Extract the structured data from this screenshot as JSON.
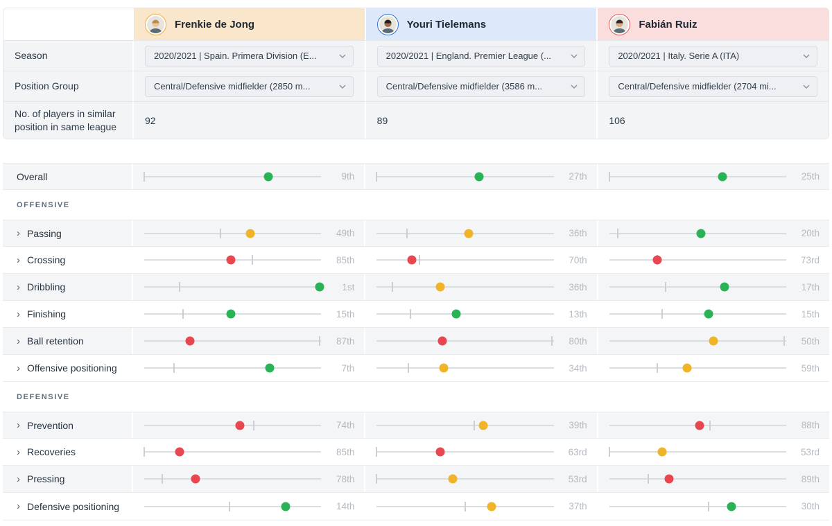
{
  "colors": {
    "green": "#29b356",
    "yellow": "#f0b429",
    "red": "#e84750",
    "track": "#dadde1"
  },
  "info": {
    "season_label": "Season",
    "position_group_label": "Position Group",
    "similar_label": "No. of players in similar position in same league"
  },
  "players": [
    {
      "name": "Frenkie de Jong",
      "header_bg": "#fae7cb",
      "accent": "#ecaf44",
      "season": "2020/2021 | Spain. Primera Division (E...",
      "position_group": "Central/Defensive midfielder (2850 m...",
      "similar_count": "92",
      "avatar": {
        "skin": "#e8c49c",
        "hair": "#b98d4f"
      }
    },
    {
      "name": "Youri Tielemans",
      "header_bg": "#dde9fb",
      "accent": "#2f6fd6",
      "season": "2020/2021 | England. Premier League (...",
      "position_group": "Central/Defensive midfielder (3586 m...",
      "similar_count": "89",
      "avatar": {
        "skin": "#9c6b44",
        "hair": "#241f1b"
      }
    },
    {
      "name": "Fabián Ruiz",
      "header_bg": "#fadedd",
      "accent": "#e35b5b",
      "season": "2020/2021 | Italy. Serie A (ITA)",
      "position_group": "Central/Defensive midfielder (2704 mi...",
      "similar_count": "106",
      "avatar": {
        "skin": "#d9ab84",
        "hair": "#2e2722"
      }
    }
  ],
  "sections": [
    {
      "title": "",
      "rows": [
        {
          "label": "Overall",
          "chevron": false,
          "cells": [
            {
              "rank": "9th",
              "color": "green",
              "dot": 0.7,
              "tick": 0.0
            },
            {
              "rank": "27th",
              "color": "green",
              "dot": 0.58,
              "tick": 0.0
            },
            {
              "rank": "25th",
              "color": "green",
              "dot": 0.64,
              "tick": 0.0
            }
          ]
        }
      ]
    },
    {
      "title": "OFFENSIVE",
      "rows": [
        {
          "label": "Passing",
          "chevron": true,
          "cells": [
            {
              "rank": "49th",
              "color": "yellow",
              "dot": 0.6,
              "tick": 0.43
            },
            {
              "rank": "36th",
              "color": "yellow",
              "dot": 0.52,
              "tick": 0.17
            },
            {
              "rank": "20th",
              "color": "green",
              "dot": 0.52,
              "tick": 0.05
            }
          ]
        },
        {
          "label": "Crossing",
          "chevron": true,
          "cells": [
            {
              "rank": "85th",
              "color": "red",
              "dot": 0.49,
              "tick": 0.61
            },
            {
              "rank": "70th",
              "color": "red",
              "dot": 0.2,
              "tick": 0.24
            },
            {
              "rank": "73rd",
              "color": "red",
              "dot": 0.27,
              "tick": 0.27
            }
          ]
        },
        {
          "label": "Dribbling",
          "chevron": true,
          "cells": [
            {
              "rank": "1st",
              "color": "green",
              "dot": 0.99,
              "tick": 0.2
            },
            {
              "rank": "36th",
              "color": "yellow",
              "dot": 0.36,
              "tick": 0.09
            },
            {
              "rank": "17th",
              "color": "green",
              "dot": 0.65,
              "tick": 0.32
            }
          ]
        },
        {
          "label": "Finishing",
          "chevron": true,
          "cells": [
            {
              "rank": "15th",
              "color": "green",
              "dot": 0.49,
              "tick": 0.22
            },
            {
              "rank": "13th",
              "color": "green",
              "dot": 0.45,
              "tick": 0.19
            },
            {
              "rank": "15th",
              "color": "green",
              "dot": 0.56,
              "tick": 0.3
            }
          ]
        },
        {
          "label": "Ball retention",
          "chevron": true,
          "cells": [
            {
              "rank": "87th",
              "color": "red",
              "dot": 0.26,
              "tick": 0.99
            },
            {
              "rank": "80th",
              "color": "red",
              "dot": 0.37,
              "tick": 0.99
            },
            {
              "rank": "50th",
              "color": "yellow",
              "dot": 0.59,
              "tick": 0.99
            }
          ]
        },
        {
          "label": "Offensive positioning",
          "chevron": true,
          "cells": [
            {
              "rank": "7th",
              "color": "green",
              "dot": 0.71,
              "tick": 0.17
            },
            {
              "rank": "34th",
              "color": "yellow",
              "dot": 0.38,
              "tick": 0.18
            },
            {
              "rank": "59th",
              "color": "yellow",
              "dot": 0.44,
              "tick": 0.27
            }
          ]
        }
      ]
    },
    {
      "title": "DEFENSIVE",
      "rows": [
        {
          "label": "Prevention",
          "chevron": true,
          "cells": [
            {
              "rank": "74th",
              "color": "red",
              "dot": 0.54,
              "tick": 0.62
            },
            {
              "rank": "39th",
              "color": "yellow",
              "dot": 0.6,
              "tick": 0.55
            },
            {
              "rank": "88th",
              "color": "red",
              "dot": 0.51,
              "tick": 0.57
            }
          ]
        },
        {
          "label": "Recoveries",
          "chevron": true,
          "cells": [
            {
              "rank": "85th",
              "color": "red",
              "dot": 0.2,
              "tick": 0.0
            },
            {
              "rank": "63rd",
              "color": "red",
              "dot": 0.36,
              "tick": 0.0
            },
            {
              "rank": "53rd",
              "color": "yellow",
              "dot": 0.3,
              "tick": 0.0
            }
          ]
        },
        {
          "label": "Pressing",
          "chevron": true,
          "cells": [
            {
              "rank": "78th",
              "color": "red",
              "dot": 0.29,
              "tick": 0.1
            },
            {
              "rank": "53rd",
              "color": "yellow",
              "dot": 0.43,
              "tick": 0.0
            },
            {
              "rank": "89th",
              "color": "red",
              "dot": 0.34,
              "tick": 0.22
            }
          ]
        },
        {
          "label": "Defensive positioning",
          "chevron": true,
          "cells": [
            {
              "rank": "14th",
              "color": "green",
              "dot": 0.8,
              "tick": 0.48
            },
            {
              "rank": "37th",
              "color": "yellow",
              "dot": 0.65,
              "tick": 0.5
            },
            {
              "rank": "30th",
              "color": "green",
              "dot": 0.69,
              "tick": 0.56
            }
          ]
        }
      ]
    }
  ]
}
